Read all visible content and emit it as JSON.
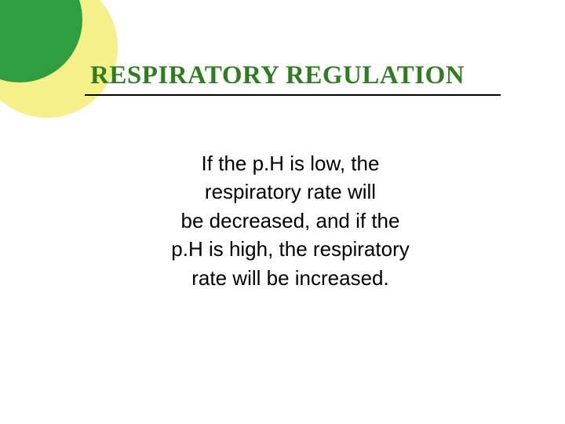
{
  "slide": {
    "title": "RESPIRATORY REGULATION",
    "title_color": "#2e7d1f",
    "title_fontsize": 33,
    "title_font": "Times New Roman",
    "body": {
      "line1": "If the p.H is low, the",
      "line2": "respiratory rate will",
      "line3": "be decreased, and if the",
      "line4": "p.H is high, the respiratory",
      "line5": "rate will be increased."
    },
    "body_fontsize": 26,
    "body_font": "Comic Sans MS",
    "body_color": "#000000",
    "decoration": {
      "green_color": "#2e9e3f",
      "yellow_color": "#f5f089"
    },
    "underline_color": "#000000",
    "background_color": "#ffffff"
  }
}
